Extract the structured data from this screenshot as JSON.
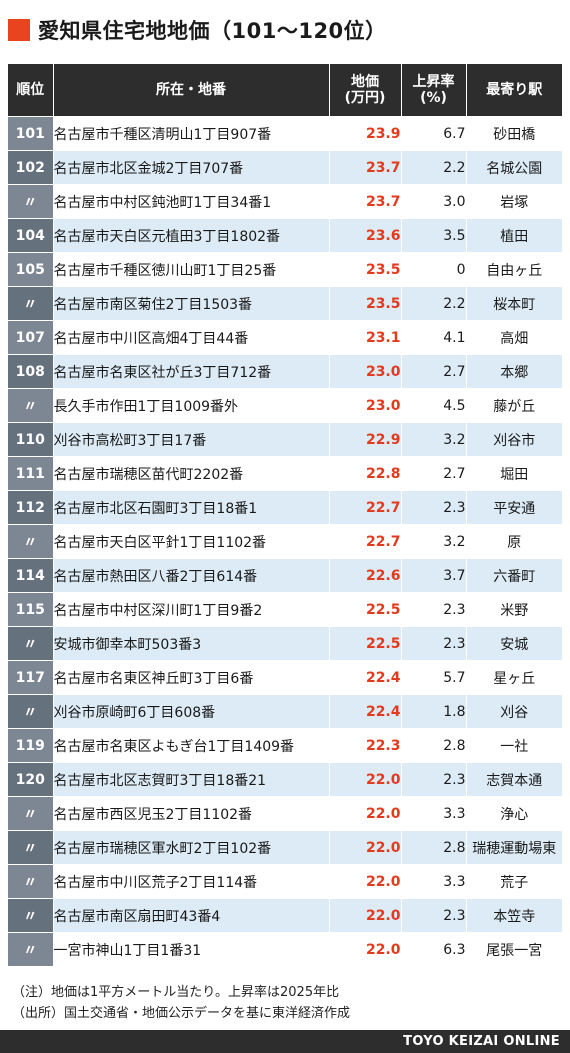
{
  "title": "愛知県住宅地地価（101〜120位）",
  "header": {
    "rank": "順位",
    "address": "所在・地番",
    "price_line1": "地価",
    "price_line2": "(万円)",
    "rate_line1": "上昇率",
    "rate_line2": "(%)",
    "station": "最寄り駅"
  },
  "rows": [
    {
      "rank": "101",
      "address": "名古屋市千種区清明山1丁目907番",
      "price": "23.9",
      "rate": "6.7",
      "station": "砂田橋"
    },
    {
      "rank": "102",
      "address": "名古屋市北区金城2丁目707番",
      "price": "23.7",
      "rate": "2.2",
      "station": "名城公園"
    },
    {
      "rank": "〃",
      "address": "名古屋市中村区鈍池町1丁目34番1",
      "price": "23.7",
      "rate": "3.0",
      "station": "岩塚"
    },
    {
      "rank": "104",
      "address": "名古屋市天白区元植田3丁目1802番",
      "price": "23.6",
      "rate": "3.5",
      "station": "植田"
    },
    {
      "rank": "105",
      "address": "名古屋市千種区徳川山町1丁目25番",
      "price": "23.5",
      "rate": "0",
      "station": "自由ヶ丘"
    },
    {
      "rank": "〃",
      "address": "名古屋市南区菊住2丁目1503番",
      "price": "23.5",
      "rate": "2.2",
      "station": "桜本町"
    },
    {
      "rank": "107",
      "address": "名古屋市中川区高畑4丁目44番",
      "price": "23.1",
      "rate": "4.1",
      "station": "高畑"
    },
    {
      "rank": "108",
      "address": "名古屋市名東区社が丘3丁目712番",
      "price": "23.0",
      "rate": "2.7",
      "station": "本郷"
    },
    {
      "rank": "〃",
      "address": "長久手市作田1丁目1009番外",
      "price": "23.0",
      "rate": "4.5",
      "station": "藤が丘"
    },
    {
      "rank": "110",
      "address": "刈谷市高松町3丁目17番",
      "price": "22.9",
      "rate": "3.2",
      "station": "刈谷市"
    },
    {
      "rank": "111",
      "address": "名古屋市瑞穂区苗代町2202番",
      "price": "22.8",
      "rate": "2.7",
      "station": "堀田"
    },
    {
      "rank": "112",
      "address": "名古屋市北区石園町3丁目18番1",
      "price": "22.7",
      "rate": "2.3",
      "station": "平安通"
    },
    {
      "rank": "〃",
      "address": "名古屋市天白区平針1丁目1102番",
      "price": "22.7",
      "rate": "3.2",
      "station": "原"
    },
    {
      "rank": "114",
      "address": "名古屋市熱田区八番2丁目614番",
      "price": "22.6",
      "rate": "3.7",
      "station": "六番町"
    },
    {
      "rank": "115",
      "address": "名古屋市中村区深川町1丁目9番2",
      "price": "22.5",
      "rate": "2.3",
      "station": "米野"
    },
    {
      "rank": "〃",
      "address": "安城市御幸本町503番3",
      "price": "22.5",
      "rate": "2.3",
      "station": "安城"
    },
    {
      "rank": "117",
      "address": "名古屋市名東区神丘町3丁目6番",
      "price": "22.4",
      "rate": "5.7",
      "station": "星ヶ丘"
    },
    {
      "rank": "〃",
      "address": "刈谷市原崎町6丁目608番",
      "price": "22.4",
      "rate": "1.8",
      "station": "刈谷"
    },
    {
      "rank": "119",
      "address": "名古屋市名東区よもぎ台1丁目1409番",
      "price": "22.3",
      "rate": "2.8",
      "station": "一社"
    },
    {
      "rank": "120",
      "address": "名古屋市北区志賀町3丁目18番21",
      "price": "22.0",
      "rate": "2.3",
      "station": "志賀本通"
    },
    {
      "rank": "〃",
      "address": "名古屋市西区児玉2丁目1102番",
      "price": "22.0",
      "rate": "3.3",
      "station": "浄心"
    },
    {
      "rank": "〃",
      "address": "名古屋市瑞穂区軍水町2丁目102番",
      "price": "22.0",
      "rate": "2.8",
      "station": "瑞穂運動場東"
    },
    {
      "rank": "〃",
      "address": "名古屋市中川区荒子2丁目114番",
      "price": "22.0",
      "rate": "3.3",
      "station": "荒子"
    },
    {
      "rank": "〃",
      "address": "名古屋市南区扇田町43番4",
      "price": "22.0",
      "rate": "2.3",
      "station": "本笠寺"
    },
    {
      "rank": "〃",
      "address": "一宮市神山1丁目1番31",
      "price": "22.0",
      "rate": "6.3",
      "station": "尾張一宮"
    }
  ],
  "notes": {
    "note1": "（注）地価は1平方メートル当たり。上昇率は2025年比",
    "note2": "（出所）国土交通省・地価公示データを基に東洋経済作成"
  },
  "footer": "TOYO KEIZAI ONLINE",
  "colors": {
    "accent_red": "#e8441f",
    "price_red": "#e33a1e",
    "header_dark": "#2d2d2d",
    "row_blue": "#dcebf5",
    "rank_gray": "#7d8793"
  }
}
